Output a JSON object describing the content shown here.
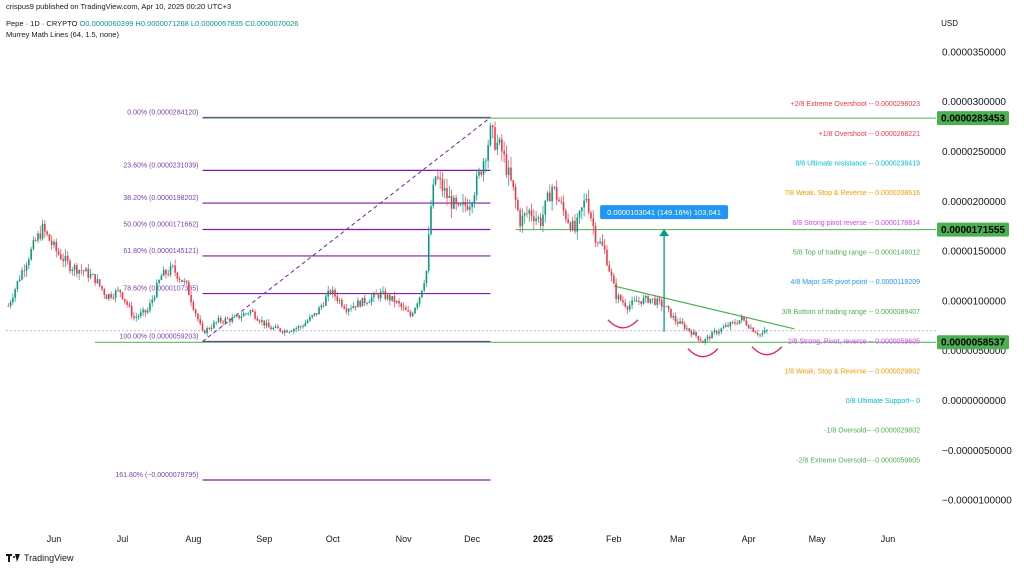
{
  "header": {
    "published": "crispus9 published on TradingView.com, Apr 10, 2025 00:20 UTC+3",
    "symbol": "Pepe · 1D · CRYPTO",
    "ohlc": "O0.0000060399 H0.0000071268 L0.0000057835 C0.0000070026",
    "indicator": "Murrey Math Lines (64, 1.5, none)",
    "currency": "USD"
  },
  "footer": {
    "brand": "TradingView"
  },
  "colors": {
    "up": "#089981",
    "down": "#f23645",
    "fib": "#7b1fa2",
    "green_line": "#4caf50",
    "badge_green": "#4caf50",
    "measure_box": "#2196f3",
    "measure_arrow": "#089981",
    "curve": "#e91e63"
  },
  "chart_data": {
    "type": "candlestick",
    "title": "",
    "y_axis": {
      "ticks": [
        "0.0000350000",
        "0.0000300000",
        "0.0000250000",
        "0.0000200000",
        "0.0000150000",
        "0.0000100000",
        "0.0000050000",
        "0.0000000000",
        "−0.0000050000",
        "−0.0000100000"
      ],
      "tick_values": [
        3.5e-05,
        3e-05,
        2.5e-05,
        2e-05,
        1.5e-05,
        1e-05,
        5e-06,
        0,
        -5e-06,
        -1e-05
      ],
      "range": [
        -1.3e-05,
        3.9e-05
      ],
      "side": "right"
    },
    "x_axis": {
      "ticks": [
        "Jun",
        "Jul",
        "Aug",
        "Sep",
        "Oct",
        "Nov",
        "Dec",
        "2025",
        "Feb",
        "Mar",
        "Apr",
        "May",
        "Jun"
      ],
      "tick_dates": [
        "2024-06-01",
        "2024-07-01",
        "2024-08-01",
        "2024-09-01",
        "2024-10-01",
        "2024-11-01",
        "2024-12-01",
        "2025-01-01",
        "2025-02-01",
        "2025-03-01",
        "2025-04-01",
        "2025-05-01",
        "2025-06-01"
      ],
      "range": [
        "2024-05-11",
        "2025-06-22"
      ],
      "bold": [
        "2025"
      ]
    },
    "price_badges": [
      {
        "label": "0.0000283453",
        "value": 2.83453e-05
      },
      {
        "label": "0.0000171555",
        "value": 1.71555e-05
      },
      {
        "label": "0.0000058537",
        "value": 5.8537e-06
      }
    ],
    "fib_levels": [
      {
        "label": "0.00% (0.0000284120)",
        "value": 2.8412e-05
      },
      {
        "label": "23.60% (0.0000231039)",
        "value": 2.31039e-05
      },
      {
        "label": "38.20% (0.0000198202)",
        "value": 1.98202e-05
      },
      {
        "label": "50.00% (0.0000171662)",
        "value": 1.71662e-05
      },
      {
        "label": "61.80% (0.0000145121)",
        "value": 1.45121e-05
      },
      {
        "label": "78.60% (0.0000107335)",
        "value": 1.07335e-05
      },
      {
        "label": "100.00% (0.0000059203)",
        "value": 5.9203e-06
      },
      {
        "label": "161.80% (−0.0000079795)",
        "value": -7.9795e-06
      }
    ],
    "fib_range": [
      "2024-08-05",
      "2024-12-09"
    ],
    "murrey_lines": [
      {
        "label": "+2/8 Extreme Overshoot --  0.0000298023",
        "y": 2.98023e-05,
        "color": "#f23645"
      },
      {
        "label": "+1/8 Overshoot --  0.0000268221",
        "y": 2.68221e-05,
        "color": "#f23645"
      },
      {
        "label": "8/8 Ultimate resistance --  0.0000238419",
        "y": 2.38419e-05,
        "color": "#00bcd4"
      },
      {
        "label": "7/8 Weak, Stop & Reverse --  0.0000208616",
        "y": 2.08616e-05,
        "color": "#ff9800"
      },
      {
        "label": "6/8 Strong pivot reverse --  0.0000178814",
        "y": 1.78814e-05,
        "color": "#e040fb"
      },
      {
        "label": "5/8 Top of trading range --  0.0000149012",
        "y": 1.49012e-05,
        "color": "#4caf50"
      },
      {
        "label": "4/8 Major S/R pivot point --  0.0000119209",
        "y": 1.19209e-05,
        "color": "#2196f3"
      },
      {
        "label": "3/8 Bottom of trading range --  0.0000089407",
        "y": 8.9407e-06,
        "color": "#4caf50"
      },
      {
        "label": "2/8 Strong, Pivot, reverse --  0.0000059605",
        "y": 5.9605e-06,
        "color": "#e040fb"
      },
      {
        "label": "1/8 Weak, Stop & Reverse --  0.0000029802",
        "y": 2.9802e-06,
        "color": "#ff9800"
      },
      {
        "label": "0/8 Ultimate Support--  0",
        "y": 0,
        "color": "#00bcd4"
      },
      {
        "label": "-1/8 Oversold--  -0.0000029802",
        "y": -2.9802e-06,
        "color": "#4caf50"
      },
      {
        "label": "-2/8 Extreme Oversold--  -0.0000059605",
        "y": -5.9605e-06,
        "color": "#4caf50"
      }
    ],
    "horizontal_lines": [
      {
        "name": "resistance",
        "y": 2.83453e-05,
        "from": "2024-08-05",
        "to": "2025-06-22"
      },
      {
        "name": "mid",
        "y": 1.71555e-05,
        "from": "2024-12-20",
        "to": "2025-06-22"
      },
      {
        "name": "support",
        "y": 5.8537e-06,
        "from": "2024-06-19",
        "to": "2025-06-22"
      }
    ],
    "trendlines": [
      {
        "name": "descending",
        "from": [
          "2025-02-01",
          1.15e-05
        ],
        "to": [
          "2025-04-21",
          7.2e-06
        ]
      },
      {
        "name": "fib-diagonal",
        "from": [
          "2024-08-05",
          5.9203e-06
        ],
        "to": [
          "2024-12-09",
          2.8412e-05
        ]
      }
    ],
    "measure": {
      "label": "0.0000103041 (149.16%) 103,041",
      "date": "2025-02-23",
      "from": 6.9e-06,
      "to": 1.72e-05
    },
    "curves": [
      {
        "center": "2025-02-05",
        "y": 7.7e-06
      },
      {
        "center": "2025-03-12",
        "y": 4.8e-06
      },
      {
        "center": "2025-04-09",
        "y": 5e-06
      }
    ],
    "series_path": [
      [
        "2024-05-12",
        9.5e-06
      ],
      [
        "2024-05-18",
        1.3e-05
      ],
      [
        "2024-05-24",
        1.6e-05
      ],
      [
        "2024-05-27",
        1.72e-05
      ],
      [
        "2024-06-02",
        1.5e-05
      ],
      [
        "2024-06-08",
        1.35e-05
      ],
      [
        "2024-06-14",
        1.3e-05
      ],
      [
        "2024-06-19",
        1.22e-05
      ],
      [
        "2024-06-24",
        1.05e-05
      ],
      [
        "2024-06-30",
        1.1e-05
      ],
      [
        "2024-07-06",
        8.3e-06
      ],
      [
        "2024-07-12",
        9e-06
      ],
      [
        "2024-07-18",
        1.25e-05
      ],
      [
        "2024-07-23",
        1.32e-05
      ],
      [
        "2024-07-29",
        1.15e-05
      ],
      [
        "2024-08-05",
        6.8e-06
      ],
      [
        "2024-08-12",
        8e-06
      ],
      [
        "2024-08-19",
        8.2e-06
      ],
      [
        "2024-08-26",
        9e-06
      ],
      [
        "2024-09-03",
        7.3e-06
      ],
      [
        "2024-09-10",
        7e-06
      ],
      [
        "2024-09-17",
        7.4e-06
      ],
      [
        "2024-09-24",
        8.8e-06
      ],
      [
        "2024-09-30",
        1.1e-05
      ],
      [
        "2024-10-07",
        9.3e-06
      ],
      [
        "2024-10-15",
        1e-05
      ],
      [
        "2024-10-22",
        1.07e-05
      ],
      [
        "2024-10-28",
        1e-05
      ],
      [
        "2024-11-04",
        8.5e-06
      ],
      [
        "2024-11-08",
        1.05e-05
      ],
      [
        "2024-11-11",
        1.3e-05
      ],
      [
        "2024-11-13",
        1.95e-05
      ],
      [
        "2024-11-15",
        2.25e-05
      ],
      [
        "2024-11-20",
        2.05e-05
      ],
      [
        "2024-11-25",
        1.9e-05
      ],
      [
        "2024-11-30",
        2e-05
      ],
      [
        "2024-12-04",
        2.25e-05
      ],
      [
        "2024-12-09",
        2.68e-05
      ],
      [
        "2024-12-14",
        2.5e-05
      ],
      [
        "2024-12-19",
        2.1e-05
      ],
      [
        "2024-12-22",
        1.8e-05
      ],
      [
        "2024-12-26",
        1.9e-05
      ],
      [
        "2024-12-31",
        1.8e-05
      ],
      [
        "2025-01-05",
        2.15e-05
      ],
      [
        "2025-01-10",
        1.9e-05
      ],
      [
        "2025-01-15",
        1.7e-05
      ],
      [
        "2025-01-20",
        2.05e-05
      ],
      [
        "2025-01-24",
        1.65e-05
      ],
      [
        "2025-01-28",
        1.5e-05
      ],
      [
        "2025-02-02",
        1.05e-05
      ],
      [
        "2025-02-07",
        9.5e-06
      ],
      [
        "2025-02-12",
        1e-05
      ],
      [
        "2025-02-17",
        1.02e-05
      ],
      [
        "2025-02-23",
        9.5e-06
      ],
      [
        "2025-02-28",
        8e-06
      ],
      [
        "2025-03-04",
        7.4e-06
      ],
      [
        "2025-03-09",
        6.5e-06
      ],
      [
        "2025-03-12",
        5.9e-06
      ],
      [
        "2025-03-17",
        6.8e-06
      ],
      [
        "2025-03-22",
        7.4e-06
      ],
      [
        "2025-03-26",
        7.8e-06
      ],
      [
        "2025-03-29",
        8.2e-06
      ],
      [
        "2025-04-02",
        7.3e-06
      ],
      [
        "2025-04-06",
        6.6e-06
      ],
      [
        "2025-04-09",
        7e-06
      ]
    ]
  }
}
